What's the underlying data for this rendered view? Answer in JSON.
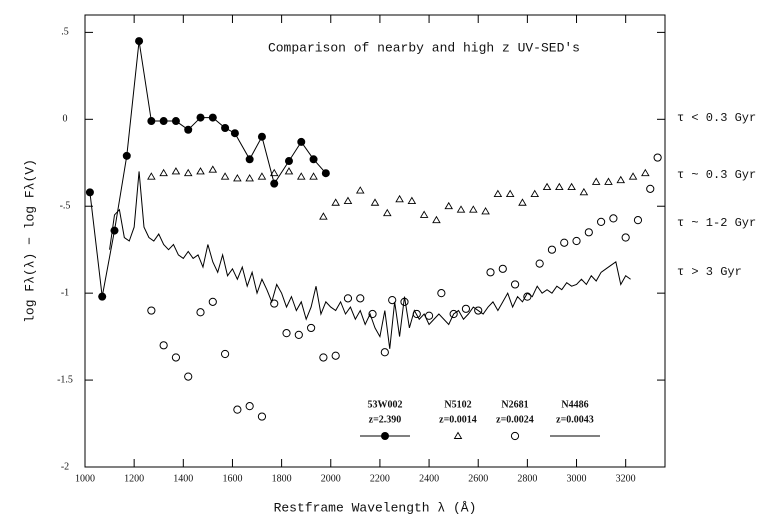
{
  "chart_data": {
    "type": "scatter",
    "title": "Comparison of nearby and high z UV-SED's",
    "xlabel": "Restframe Wavelength λ  (Å)",
    "ylabel": "log Fλ(λ)  −  log Fλ(V)",
    "xlim": [
      1000,
      3360
    ],
    "ylim": [
      -2,
      0.6
    ],
    "xticks": [
      1000,
      1200,
      1400,
      1600,
      1800,
      2000,
      2200,
      2400,
      2600,
      2800,
      3000,
      3200
    ],
    "yticks": [
      {
        "value": 0.5,
        "label": ".5"
      },
      0,
      {
        "value": -0.5,
        "label": "-.5"
      },
      -1,
      -1.5,
      -2
    ],
    "annotations": [
      "τ < 0.3 Gyr",
      "τ ~ 0.3 Gyr",
      "τ ~ 1-2 Gyr",
      "τ > 3 Gyr"
    ],
    "series": [
      {
        "name": "53W002",
        "redshift": "z=2.390",
        "marker": "filled-circle",
        "line": true,
        "color": "#000000",
        "x": [
          1020,
          1070,
          1120,
          1170,
          1220,
          1270,
          1320,
          1370,
          1420,
          1470,
          1520,
          1570,
          1610,
          1670,
          1720,
          1770,
          1830,
          1880,
          1930,
          1980
        ],
        "values": [
          -0.42,
          -1.02,
          -0.64,
          -0.21,
          0.45,
          -0.01,
          -0.01,
          -0.01,
          -0.06,
          0.01,
          0.01,
          -0.05,
          -0.08,
          -0.23,
          -0.1,
          -0.37,
          -0.24,
          -0.13,
          -0.23,
          -0.31
        ]
      },
      {
        "name": "N5102",
        "redshift": "z=0.0014",
        "marker": "triangle",
        "line": false,
        "color": "#000000",
        "x": [
          1270,
          1320,
          1370,
          1420,
          1470,
          1520,
          1570,
          1620,
          1670,
          1720,
          1770,
          1830,
          1880,
          1930,
          1970,
          2020,
          2070,
          2120,
          2180,
          2230,
          2280,
          2330,
          2380,
          2430,
          2480,
          2530,
          2580,
          2630,
          2680,
          2730,
          2780,
          2830,
          2880,
          2930,
          2980,
          3030,
          3080,
          3130,
          3180,
          3230,
          3280
        ],
        "values": [
          -0.33,
          -0.31,
          -0.3,
          -0.31,
          -0.3,
          -0.29,
          -0.33,
          -0.34,
          -0.34,
          -0.33,
          -0.31,
          -0.3,
          -0.33,
          -0.33,
          -0.56,
          -0.48,
          -0.47,
          -0.41,
          -0.48,
          -0.54,
          -0.46,
          -0.47,
          -0.55,
          -0.58,
          -0.5,
          -0.52,
          -0.52,
          -0.53,
          -0.43,
          -0.43,
          -0.48,
          -0.43,
          -0.39,
          -0.39,
          -0.39,
          -0.42,
          -0.36,
          -0.36,
          -0.35,
          -0.33,
          -0.31
        ]
      },
      {
        "name": "N2681",
        "redshift": "z=0.0024",
        "marker": "circle",
        "line": false,
        "color": "#000000",
        "x": [
          1270,
          1320,
          1370,
          1420,
          1470,
          1520,
          1570,
          1620,
          1670,
          1720,
          1770,
          1820,
          1870,
          1920,
          1970,
          2020,
          2070,
          2120,
          2170,
          2220,
          2250,
          2300,
          2350,
          2400,
          2450,
          2500,
          2550,
          2600,
          2650,
          2700,
          2750,
          2800,
          2850,
          2900,
          2950,
          3000,
          3050,
          3100,
          3150,
          3200,
          3250,
          3300,
          3330
        ],
        "values": [
          -1.1,
          -1.3,
          -1.37,
          -1.48,
          -1.11,
          -1.05,
          -1.35,
          -1.67,
          -1.65,
          -1.71,
          -1.06,
          -1.23,
          -1.24,
          -1.2,
          -1.37,
          -1.36,
          -1.03,
          -1.03,
          -1.12,
          -1.34,
          -1.04,
          -1.05,
          -1.12,
          -1.13,
          -1.0,
          -1.12,
          -1.09,
          -1.1,
          -0.88,
          -0.86,
          -0.95,
          -1.02,
          -0.83,
          -0.75,
          -0.71,
          -0.7,
          -0.65,
          -0.59,
          -0.57,
          -0.68,
          -0.58,
          -0.4,
          -0.22
        ]
      },
      {
        "name": "N4486",
        "redshift": "z=0.0043",
        "marker": "none",
        "line": true,
        "color": "#000000",
        "x": [
          1100,
          1120,
          1140,
          1160,
          1180,
          1200,
          1220,
          1240,
          1260,
          1280,
          1300,
          1320,
          1340,
          1360,
          1380,
          1400,
          1420,
          1440,
          1460,
          1480,
          1500,
          1520,
          1540,
          1560,
          1580,
          1600,
          1620,
          1640,
          1660,
          1680,
          1700,
          1720,
          1740,
          1760,
          1780,
          1800,
          1820,
          1840,
          1860,
          1880,
          1900,
          1920,
          1940,
          1960,
          1980,
          2000,
          2020,
          2040,
          2060,
          2080,
          2100,
          2120,
          2140,
          2160,
          2180,
          2200,
          2220,
          2240,
          2260,
          2280,
          2300,
          2320,
          2340,
          2360,
          2380,
          2400,
          2420,
          2440,
          2460,
          2480,
          2500,
          2520,
          2540,
          2560,
          2580,
          2600,
          2620,
          2640,
          2660,
          2680,
          2700,
          2720,
          2740,
          2760,
          2780,
          2800,
          2820,
          2840,
          2860,
          2880,
          2900,
          2920,
          2940,
          2960,
          2980,
          3000,
          3020,
          3040,
          3060,
          3080,
          3100,
          3120,
          3140,
          3160,
          3180,
          3200,
          3220
        ],
        "values": [
          -0.75,
          -0.55,
          -0.52,
          -0.68,
          -0.7,
          -0.62,
          -0.3,
          -0.62,
          -0.68,
          -0.7,
          -0.66,
          -0.72,
          -0.75,
          -0.72,
          -0.78,
          -0.8,
          -0.76,
          -0.8,
          -0.78,
          -0.85,
          -0.72,
          -0.82,
          -0.88,
          -0.78,
          -0.9,
          -0.86,
          -0.92,
          -0.85,
          -0.96,
          -0.88,
          -1.0,
          -0.92,
          -0.98,
          -1.05,
          -0.95,
          -1.0,
          -1.08,
          -1.02,
          -1.1,
          -1.05,
          -1.15,
          -1.08,
          -0.96,
          -1.12,
          -1.05,
          -1.08,
          -1.1,
          -1.05,
          -1.12,
          -1.08,
          -1.15,
          -1.1,
          -1.18,
          -1.12,
          -1.2,
          -1.25,
          -1.1,
          -1.32,
          -1.05,
          -1.25,
          -1.02,
          -1.2,
          -1.1,
          -1.15,
          -1.12,
          -1.18,
          -1.15,
          -1.12,
          -1.15,
          -1.18,
          -1.12,
          -1.1,
          -1.15,
          -1.12,
          -1.08,
          -1.1,
          -1.12,
          -1.08,
          -1.05,
          -1.1,
          -1.05,
          -1.0,
          -1.08,
          -1.02,
          -1.05,
          -1.0,
          -1.02,
          -0.96,
          -1.0,
          -0.98,
          -1.0,
          -0.96,
          -0.98,
          -0.94,
          -0.96,
          -0.95,
          -0.92,
          -0.95,
          -0.9,
          -0.93,
          -0.88,
          -0.86,
          -0.84,
          -0.82,
          -0.95,
          -0.9,
          -0.92
        ]
      }
    ]
  }
}
